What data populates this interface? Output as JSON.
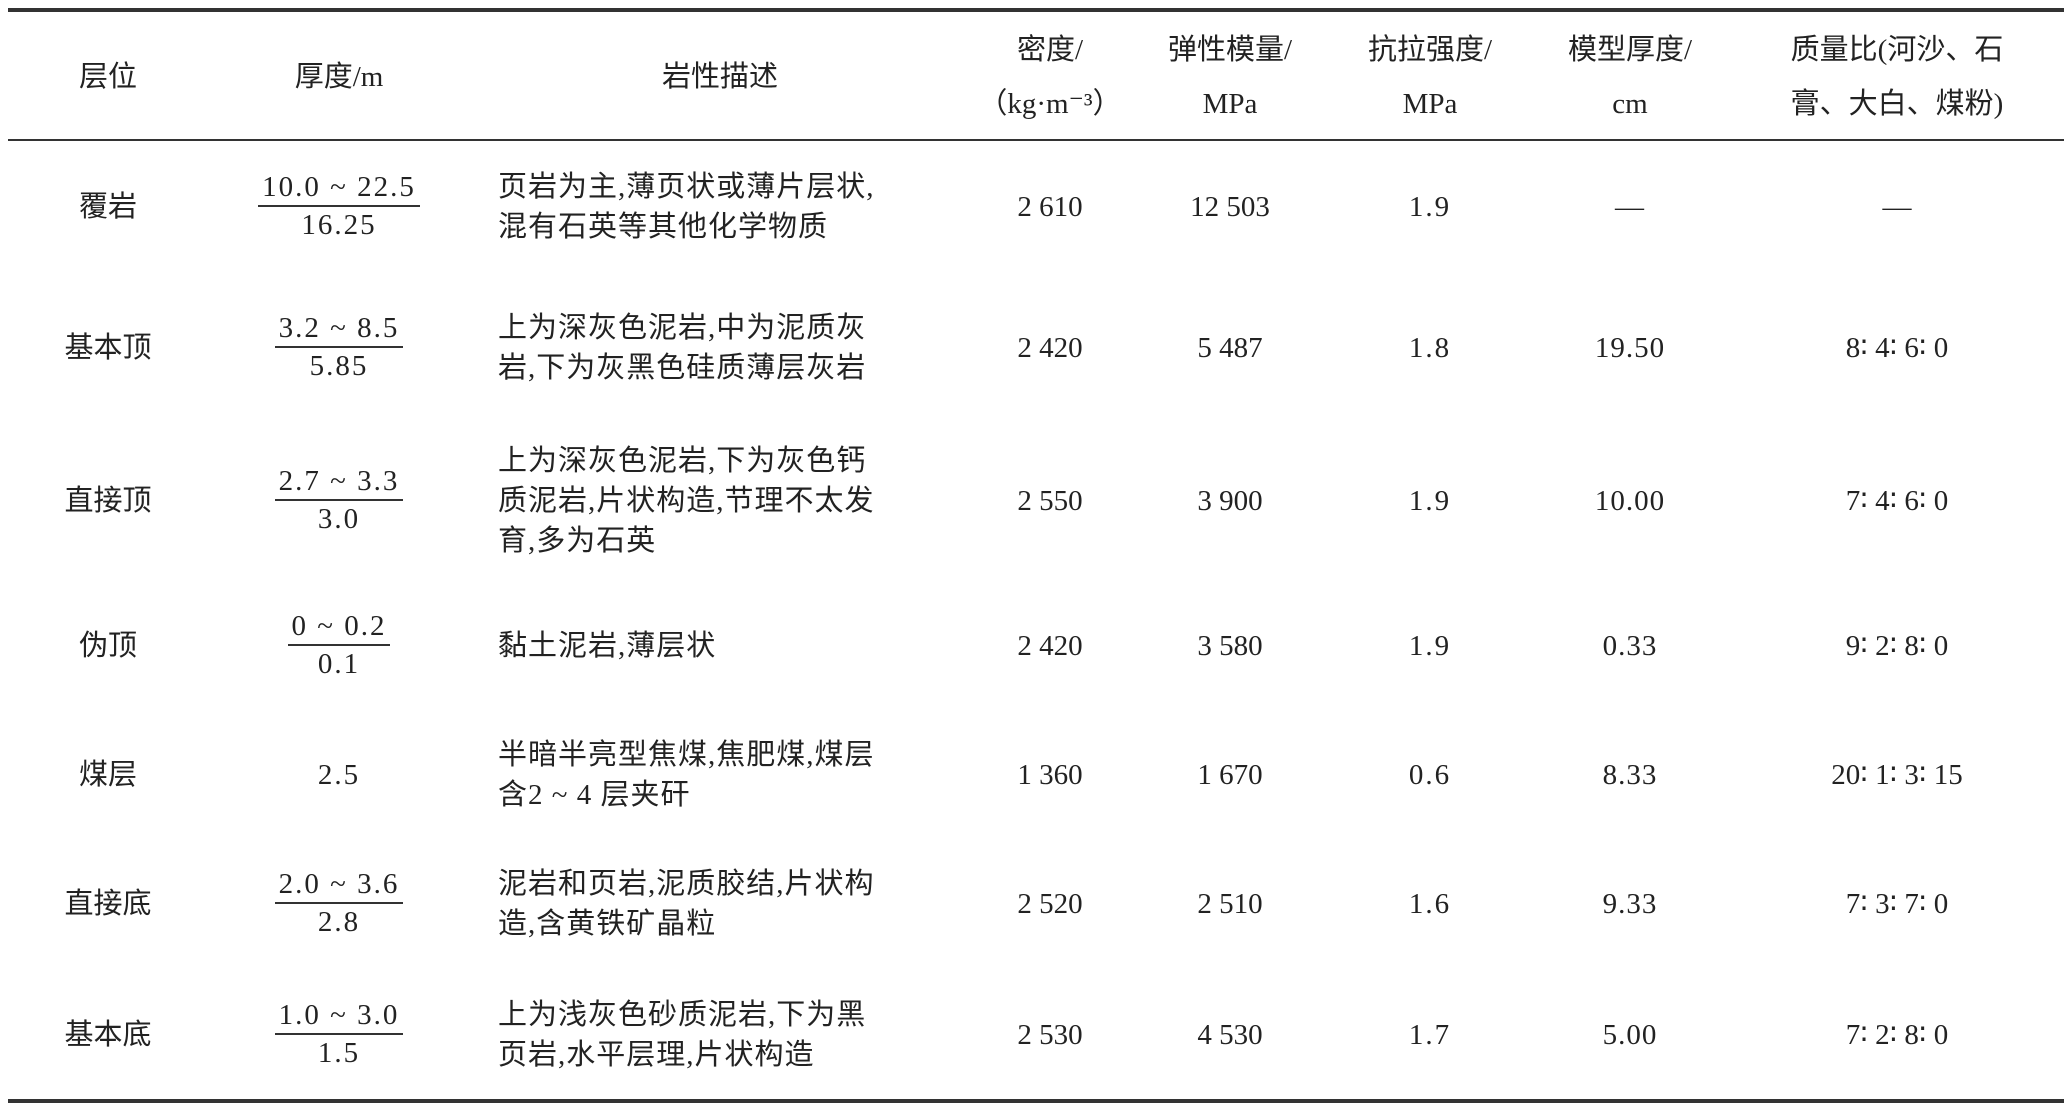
{
  "table": {
    "headers": [
      [
        "层位"
      ],
      [
        "厚度/m"
      ],
      [
        "岩性描述"
      ],
      [
        "密度/",
        "（kg·m⁻³）"
      ],
      [
        "弹性模量/",
        "MPa"
      ],
      [
        "抗拉强度/",
        "MPa"
      ],
      [
        "模型厚度/",
        "cm"
      ],
      [
        "质量比(河沙、石",
        "膏、大白、煤粉)"
      ]
    ],
    "rows": [
      {
        "layer": "覆岩",
        "thickness_range": "10.0 ~ 22.5",
        "thickness_avg": "16.25",
        "lithology": "页岩为主,薄页状或薄片层状,混有石英等其他化学物质",
        "density": "2 610",
        "elastic_modulus": "12 503",
        "tensile_strength": "1.9",
        "model_thickness": "—",
        "mass_ratio": "—"
      },
      {
        "layer": "基本顶",
        "thickness_range": "3.2 ~ 8.5",
        "thickness_avg": "5.85",
        "lithology": "上为深灰色泥岩,中为泥质灰岩,下为灰黑色硅质薄层灰岩",
        "density": "2 420",
        "elastic_modulus": "5 487",
        "tensile_strength": "1.8",
        "model_thickness": "19.50",
        "mass_ratio": "8∶ 4∶ 6∶ 0"
      },
      {
        "layer": "直接顶",
        "thickness_range": "2.7 ~ 3.3",
        "thickness_avg": "3.0",
        "lithology": "上为深灰色泥岩,下为灰色钙质泥岩,片状构造,节理不太发育,多为石英",
        "density": "2 550",
        "elastic_modulus": "3 900",
        "tensile_strength": "1.9",
        "model_thickness": "10.00",
        "mass_ratio": "7∶ 4∶ 6∶ 0"
      },
      {
        "layer": "伪顶",
        "thickness_range": "0 ~ 0.2",
        "thickness_avg": "0.1",
        "lithology": "黏土泥岩,薄层状",
        "density": "2 420",
        "elastic_modulus": "3 580",
        "tensile_strength": "1.9",
        "model_thickness": "0.33",
        "mass_ratio": "9∶ 2∶ 8∶ 0"
      },
      {
        "layer": "煤层",
        "thickness": "2.5",
        "lithology": "半暗半亮型焦煤,焦肥煤,煤层含2 ~ 4 层夹矸",
        "density": "1 360",
        "elastic_modulus": "1 670",
        "tensile_strength": "0.6",
        "model_thickness": "8.33",
        "mass_ratio": "20∶ 1∶ 3∶ 15"
      },
      {
        "layer": "直接底",
        "thickness_range": "2.0 ~ 3.6",
        "thickness_avg": "2.8",
        "lithology": "泥岩和页岩,泥质胶结,片状构造,含黄铁矿晶粒",
        "density": "2 520",
        "elastic_modulus": "2 510",
        "tensile_strength": "1.6",
        "model_thickness": "9.33",
        "mass_ratio": "7∶ 3∶ 7∶ 0"
      },
      {
        "layer": "基本底",
        "thickness_range": "1.0 ~ 3.0",
        "thickness_avg": "1.5",
        "lithology": "上为浅灰色砂质泥岩,下为黑页岩,水平层理,片状构造",
        "density": "2 530",
        "elastic_modulus": "4 530",
        "tensile_strength": "1.7",
        "model_thickness": "5.00",
        "mass_ratio": "7∶ 2∶ 8∶ 0"
      }
    ]
  }
}
